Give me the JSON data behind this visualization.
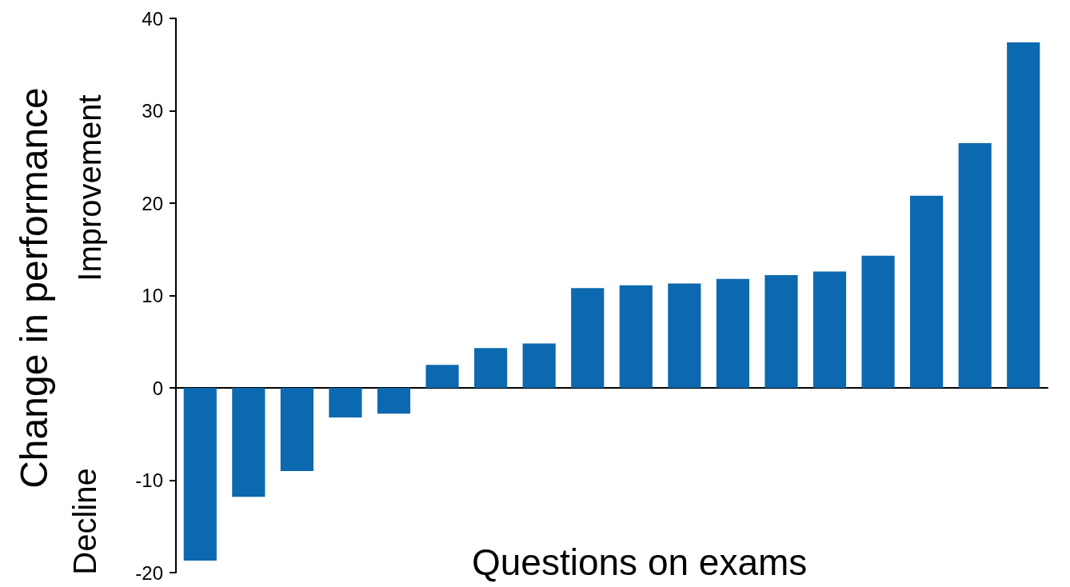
{
  "chart_data": {
    "type": "bar",
    "ylabel": "Change in performance",
    "xlabel": "Questions on exams",
    "annotations": [
      "Improvement",
      "Decline"
    ],
    "categories": [
      null,
      null,
      null,
      null,
      null,
      null,
      null,
      null,
      null,
      null,
      null,
      null,
      null,
      null,
      null,
      null,
      null,
      null
    ],
    "values": [
      -18.7,
      -11.8,
      -9.0,
      -3.2,
      -2.8,
      2.5,
      4.3,
      4.8,
      10.8,
      11.1,
      11.3,
      11.8,
      12.2,
      12.6,
      14.3,
      20.8,
      26.5,
      37.4
    ],
    "color": "#0c69af",
    "ylim": [
      -20,
      40
    ],
    "yticks": [
      -20,
      -10,
      0,
      10,
      20,
      30,
      40
    ]
  }
}
